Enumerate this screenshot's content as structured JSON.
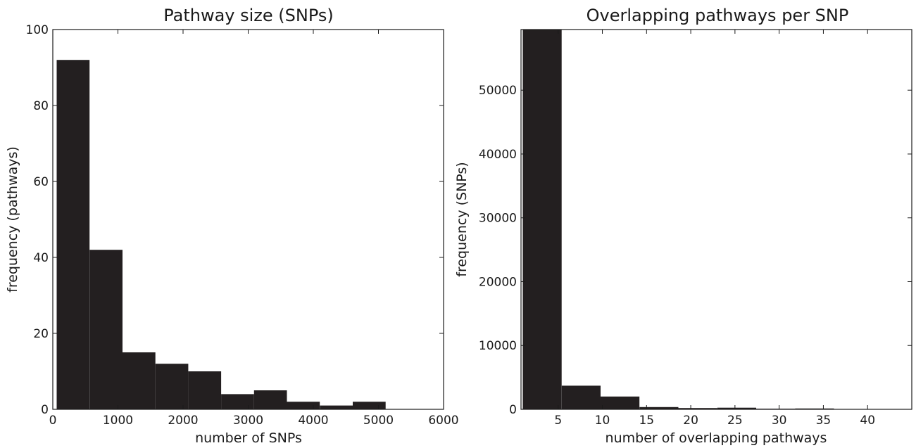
{
  "bar_color": "#231f20",
  "chart_data": [
    {
      "type": "bar",
      "title": "Pathway size (SNPs)",
      "xlabel": "number of SNPs",
      "ylabel": "frequency (pathways)",
      "xlim": [
        0,
        6000
      ],
      "ylim": [
        0,
        100
      ],
      "xticks": [
        0,
        1000,
        2000,
        3000,
        4000,
        5000,
        6000
      ],
      "yticks": [
        0,
        20,
        40,
        60,
        80,
        100
      ],
      "xtick_labels": [
        "0",
        "1000",
        "2000",
        "3000",
        "4000",
        "5000",
        "6000"
      ],
      "ytick_labels": [
        "0",
        "20",
        "40",
        "60",
        "80",
        "100"
      ],
      "bin_edges": [
        60,
        565,
        1070,
        1575,
        2080,
        2585,
        3090,
        3595,
        4100,
        4605,
        5110
      ],
      "values": [
        92,
        42,
        15,
        12,
        10,
        4,
        5,
        2,
        1,
        2
      ],
      "grid": false
    },
    {
      "type": "bar",
      "title": "Overlapping pathways per SNP",
      "xlabel": "number of overlapping pathways",
      "ylabel": "frequency (SNPs)",
      "xlim": [
        0.8,
        45
      ],
      "ylim": [
        0,
        59500
      ],
      "xticks": [
        5,
        10,
        15,
        20,
        25,
        30,
        35,
        40
      ],
      "yticks": [
        0,
        10000,
        20000,
        30000,
        40000,
        50000
      ],
      "xtick_labels": [
        "5",
        "10",
        "15",
        "20",
        "25",
        "30",
        "35",
        "40"
      ],
      "ytick_labels": [
        "0",
        "10000",
        "20000",
        "30000",
        "40000",
        "50000"
      ],
      "bin_edges": [
        1,
        5.4,
        9.8,
        14.2,
        18.6,
        23,
        27.4,
        31.8,
        36.2,
        40.6,
        45
      ],
      "values": [
        60000,
        3700,
        2000,
        350,
        200,
        250,
        100,
        130,
        60,
        40
      ],
      "grid": false
    }
  ]
}
